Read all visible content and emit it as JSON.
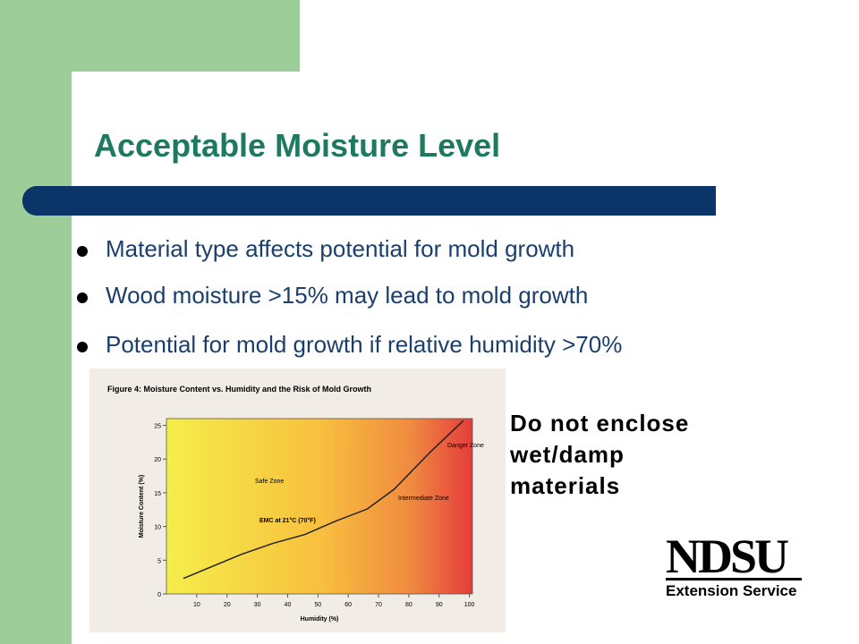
{
  "slide": {
    "title": "Acceptable Moisture Level",
    "bullets": [
      "Material type affects potential for mold growth",
      "Wood moisture >15% may lead to mold growth",
      "Potential for mold growth if relative humidity >70%"
    ],
    "note": [
      "Do not enclose",
      "wet/damp",
      "materials"
    ],
    "logo": {
      "name": "NDSU",
      "subtitle": "Extension Service"
    }
  },
  "figure": {
    "type": "line",
    "title": "Figure 4: Moisture Content vs. Humidity and the Risk of Mold Growth",
    "x_label": "Humidity (%)",
    "y_label": "Moisture Content (%)",
    "annotations": [
      "Safe Zone",
      "Intermediate Zone",
      "Danger Zone",
      "EMC at 21°C (70°F)"
    ],
    "x": [
      5.6,
      24.9,
      35.2,
      45.6,
      55.9,
      66.3,
      75.1,
      87,
      98
    ],
    "values": [
      2.3,
      5.9,
      7.5,
      8.8,
      10.8,
      12.6,
      15.5,
      21,
      25.7
    ],
    "color": "#222222",
    "xlim": [
      0,
      101
    ],
    "ylim": [
      0,
      26
    ],
    "xticks": [
      10,
      20,
      30,
      40,
      50,
      60,
      70,
      80,
      90,
      100
    ],
    "yticks": [
      0,
      5,
      10,
      15,
      20,
      25
    ]
  }
}
